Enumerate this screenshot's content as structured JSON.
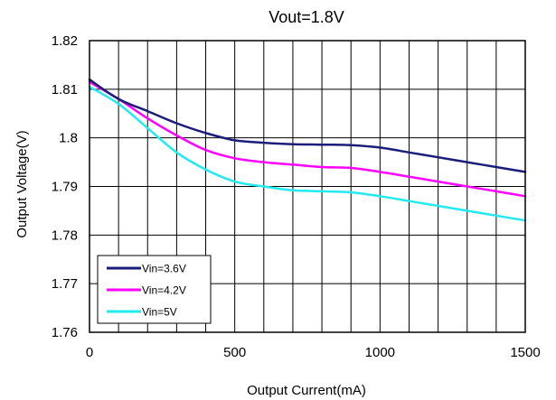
{
  "chart_data": {
    "type": "line",
    "title": "Vout=1.8V",
    "xlabel": "Output Current(mA)",
    "ylabel": "Output Voltage(V)",
    "xlim": [
      0,
      1500
    ],
    "ylim": [
      1.76,
      1.82
    ],
    "x_ticks": [
      0,
      500,
      1000,
      1500
    ],
    "x_tick_labels": [
      "0",
      "500",
      "1000",
      "1500"
    ],
    "y_ticks": [
      1.76,
      1.77,
      1.78,
      1.79,
      1.8,
      1.81,
      1.82
    ],
    "y_tick_labels": [
      "1.76",
      "1.77",
      "1.78",
      "1.79",
      "1.8",
      "1.81",
      "1.82"
    ],
    "grid": "on",
    "legend_position": "bottom-left",
    "series": [
      {
        "name": "Vin=3.6V",
        "color": "#1c1c7a",
        "x": [
          0,
          100,
          200,
          300,
          400,
          500,
          600,
          700,
          800,
          900,
          1000,
          1100,
          1200,
          1300,
          1400,
          1500
        ],
        "y": [
          1.812,
          1.808,
          1.8055,
          1.803,
          1.801,
          1.7995,
          1.799,
          1.7987,
          1.7986,
          1.7985,
          1.798,
          1.797,
          1.796,
          1.795,
          1.794,
          1.793
        ]
      },
      {
        "name": "Vin=4.2V",
        "color": "#ff00ff",
        "x": [
          0,
          100,
          200,
          300,
          400,
          500,
          600,
          700,
          800,
          900,
          1000,
          1100,
          1200,
          1300,
          1400,
          1500
        ],
        "y": [
          1.8115,
          1.808,
          1.804,
          1.8005,
          1.7975,
          1.7958,
          1.795,
          1.7945,
          1.794,
          1.7938,
          1.793,
          1.792,
          1.791,
          1.79,
          1.789,
          1.788
        ]
      },
      {
        "name": "Vin=5V",
        "color": "#22eaf0",
        "x": [
          0,
          100,
          200,
          300,
          400,
          500,
          600,
          700,
          800,
          900,
          1000,
          1100,
          1200,
          1300,
          1400,
          1500
        ],
        "y": [
          1.8105,
          1.807,
          1.802,
          1.797,
          1.7935,
          1.791,
          1.79,
          1.7892,
          1.789,
          1.7888,
          1.788,
          1.787,
          1.786,
          1.785,
          1.784,
          1.783
        ]
      }
    ]
  }
}
